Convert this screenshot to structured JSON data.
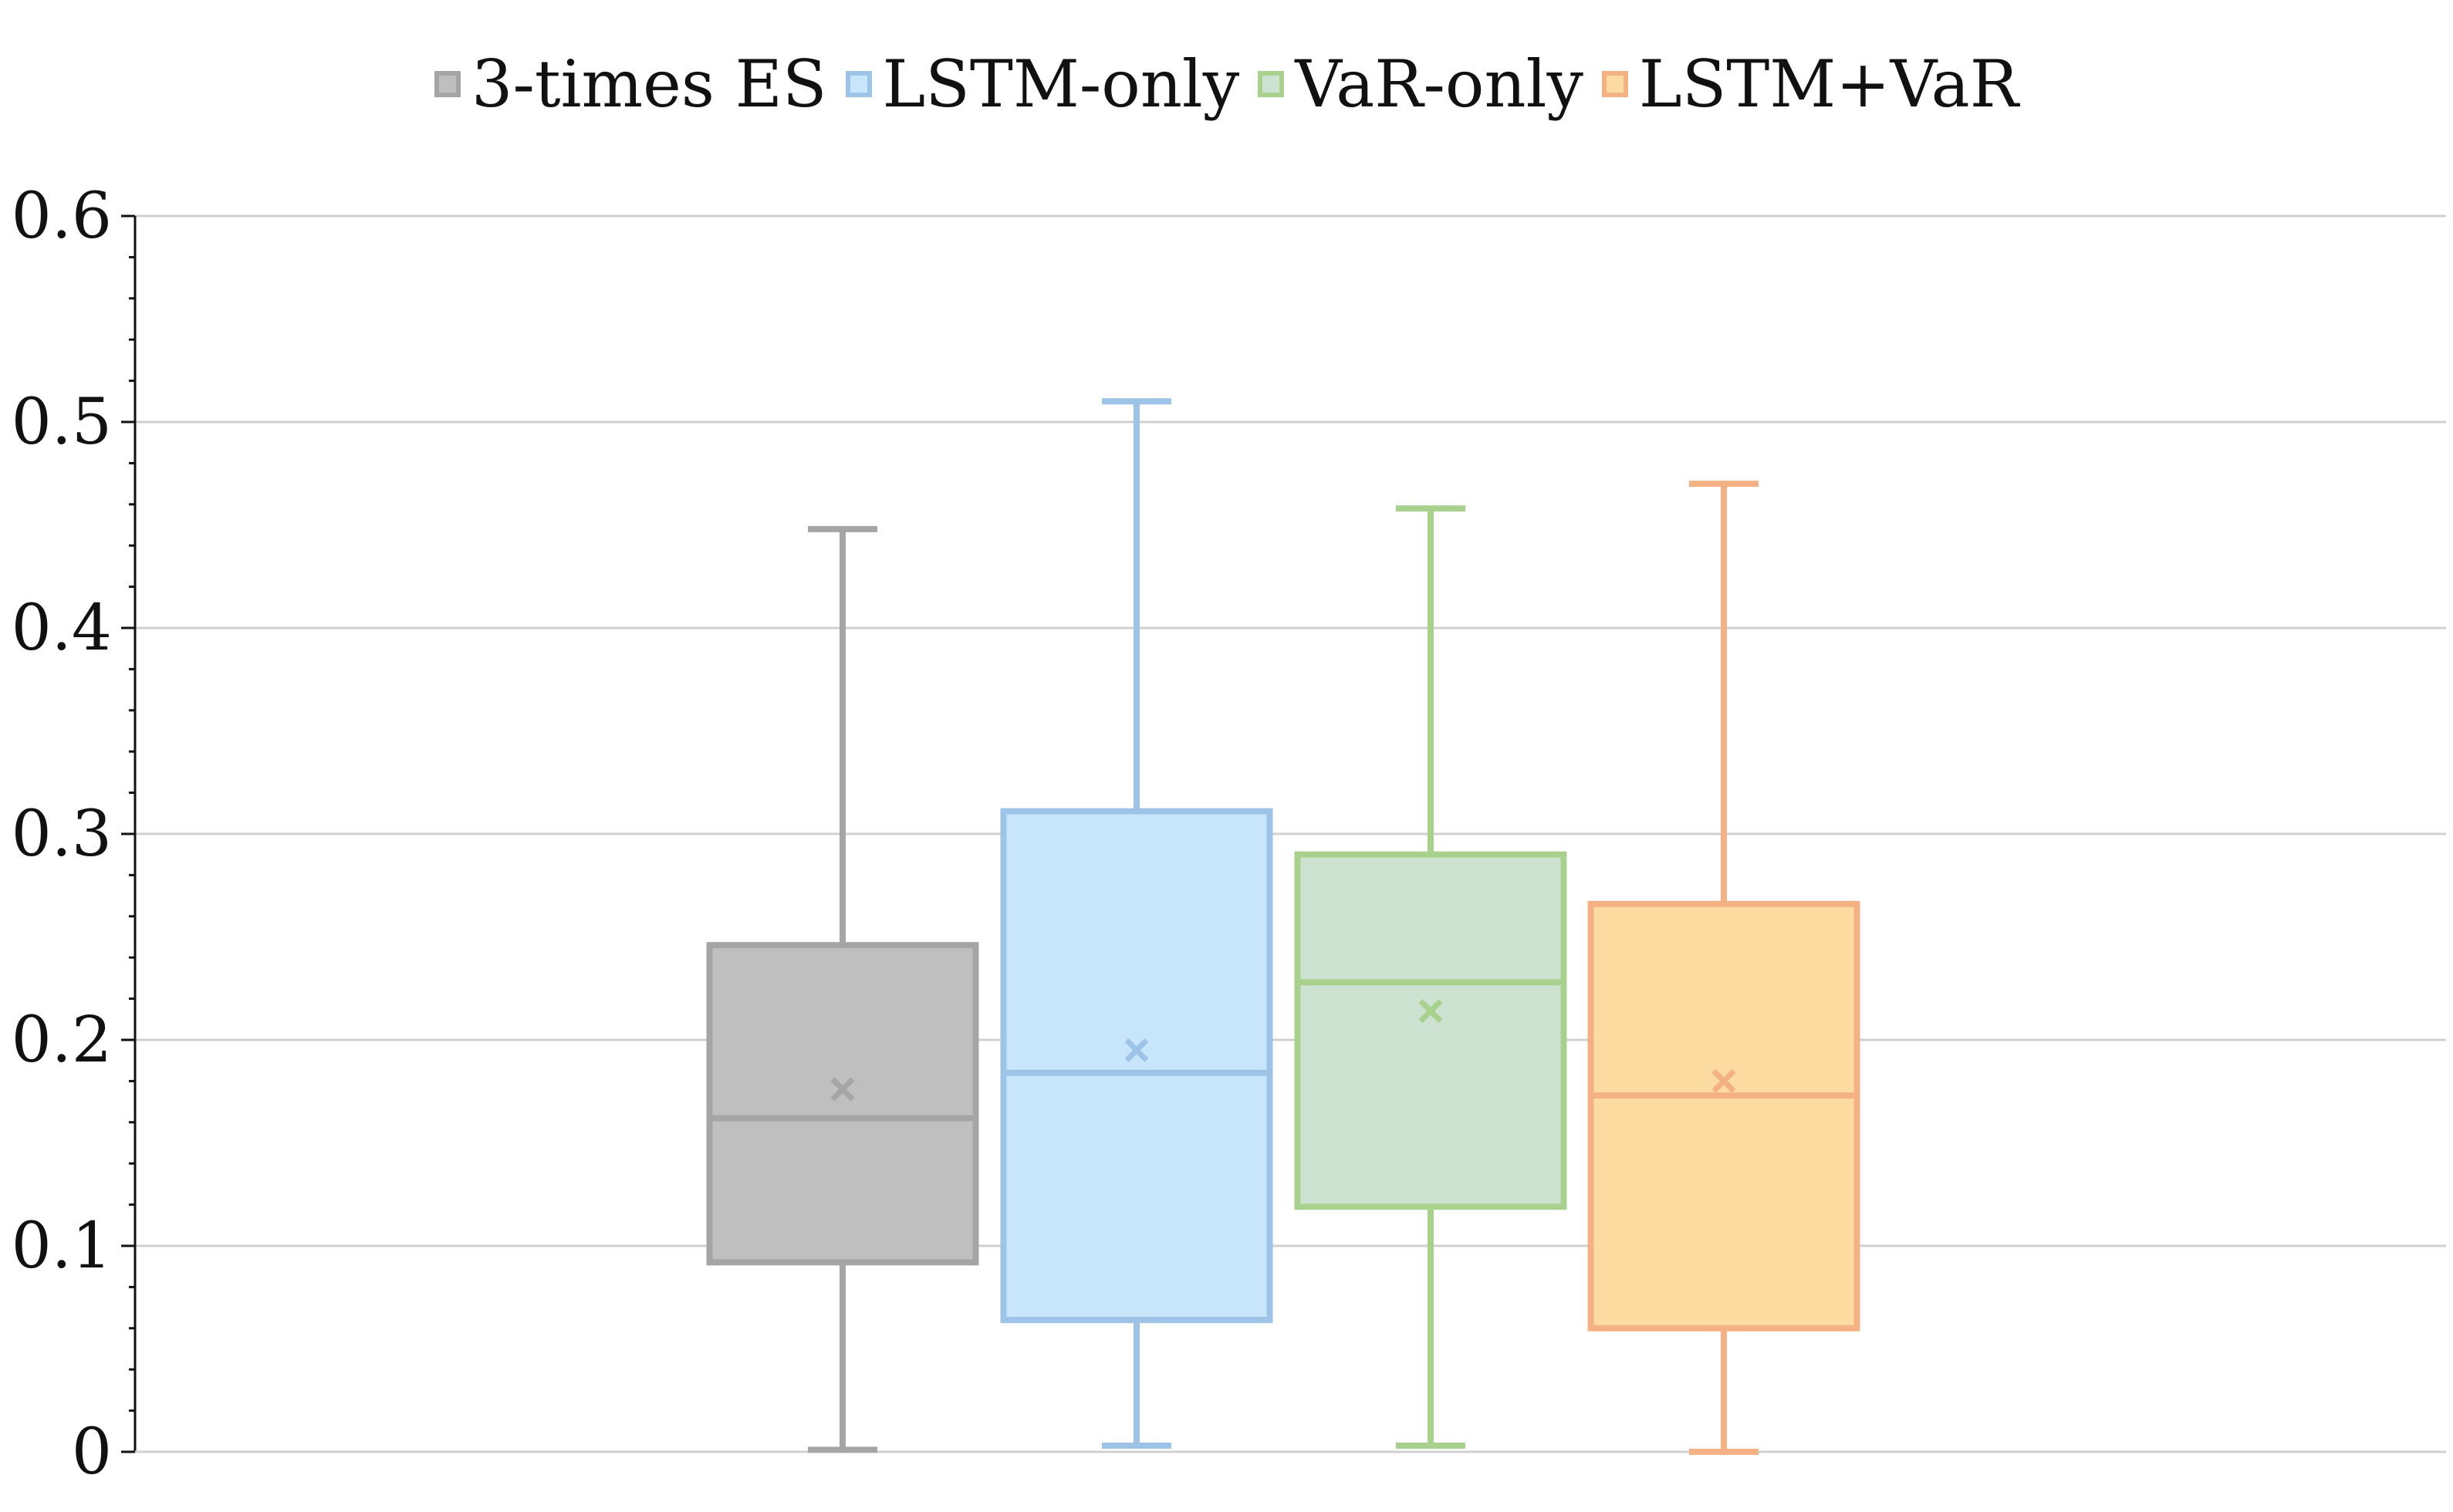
{
  "chart_data": {
    "type": "box",
    "ylim": [
      0,
      0.6
    ],
    "yticks": [
      "0",
      "0.1",
      "0.2",
      "0.3",
      "0.4",
      "0.5",
      "0.6"
    ],
    "grid": true,
    "legend_position": "top",
    "series": [
      {
        "name": "3-times ES",
        "min": 0.001,
        "q1": 0.092,
        "median": 0.162,
        "q3": 0.246,
        "max": 0.448,
        "mean": 0.176,
        "fill": "#bfbfbf",
        "stroke": "#a5a5a5"
      },
      {
        "name": "LSTM-only",
        "min": 0.003,
        "q1": 0.064,
        "median": 0.184,
        "q3": 0.311,
        "max": 0.51,
        "mean": 0.195,
        "fill": "#c7e6fb",
        "stroke": "#9dc3e6"
      },
      {
        "name": "VaR-only",
        "min": 0.003,
        "q1": 0.119,
        "median": 0.228,
        "q3": 0.29,
        "max": 0.458,
        "mean": 0.214,
        "fill": "#cde2d1",
        "stroke": "#a9d18e"
      },
      {
        "name": "LSTM+VaR",
        "min": 0.0,
        "q1": 0.06,
        "median": 0.173,
        "q3": 0.266,
        "max": 0.47,
        "mean": 0.18,
        "fill": "#fbdba0",
        "stroke": "#f4b183"
      }
    ]
  }
}
